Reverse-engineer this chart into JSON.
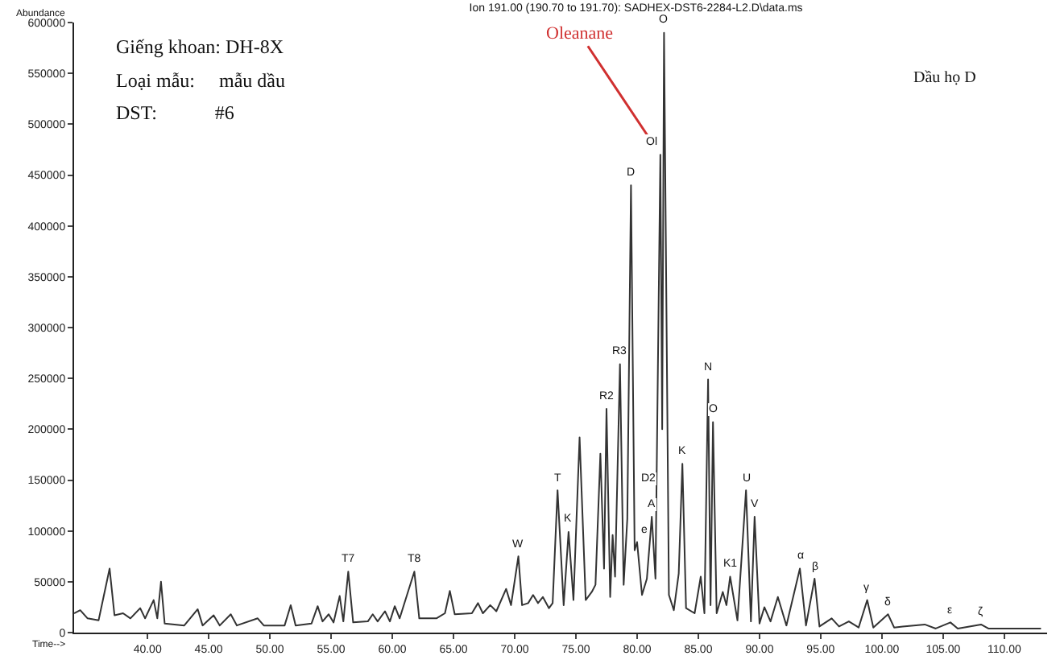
{
  "chart_data": {
    "type": "line",
    "title": "Ion 191.00 (190.70 to 191.70): SADHEX-DST6-2284-L2.D\\data.ms",
    "xlabel": "Time-->",
    "ylabel": "Abundance",
    "xlim": [
      34,
      113.5
    ],
    "ylim": [
      0,
      600000
    ],
    "xticks": [
      {
        "value": 40,
        "label": "40.00"
      },
      {
        "value": 45,
        "label": "45.00"
      },
      {
        "value": 50,
        "label": "50.00"
      },
      {
        "value": 55,
        "label": "55.00"
      },
      {
        "value": 60,
        "label": "60.00"
      },
      {
        "value": 65,
        "label": "65.00"
      },
      {
        "value": 70,
        "label": "70.00"
      },
      {
        "value": 75,
        "label": "75.00"
      },
      {
        "value": 80,
        "label": "80.00"
      },
      {
        "value": 85,
        "label": "85.00"
      },
      {
        "value": 90,
        "label": "90.00"
      },
      {
        "value": 95,
        "label": "95.00"
      },
      {
        "value": 100,
        "label": "100.00"
      },
      {
        "value": 105,
        "label": "105.00"
      },
      {
        "value": 110,
        "label": "110.00"
      }
    ],
    "yticks": [
      0,
      50000,
      100000,
      150000,
      200000,
      250000,
      300000,
      350000,
      400000,
      450000,
      500000,
      550000,
      600000
    ],
    "marker": "none",
    "line_style": "solid",
    "x": [
      34.0,
      34.5,
      35.1,
      36.0,
      36.9,
      37.3,
      38.0,
      38.6,
      39.4,
      39.8,
      40.5,
      40.8,
      41.1,
      41.4,
      43.0,
      44.1,
      44.5,
      45.4,
      45.9,
      46.8,
      47.3,
      49.0,
      49.5,
      51.2,
      51.7,
      52.1,
      53.4,
      53.9,
      54.3,
      54.8,
      55.2,
      55.7,
      56.0,
      56.4,
      56.8,
      58.0,
      58.4,
      58.8,
      59.4,
      59.8,
      60.2,
      60.6,
      61.8,
      62.2,
      63.6,
      64.3,
      64.7,
      65.1,
      66.5,
      67.0,
      67.4,
      68.0,
      68.5,
      69.3,
      69.7,
      70.3,
      70.6,
      71.1,
      71.5,
      71.9,
      72.3,
      72.8,
      73.1,
      73.5,
      74.0,
      74.4,
      74.8,
      75.3,
      75.8,
      76.3,
      76.6,
      77.0,
      77.3,
      77.5,
      77.8,
      78.0,
      78.2,
      78.6,
      78.9,
      79.2,
      79.5,
      79.8,
      80.0,
      80.4,
      80.8,
      81.2,
      81.5,
      81.9,
      82.05,
      82.2,
      82.6,
      83.0,
      83.4,
      83.7,
      84.0,
      84.7,
      85.2,
      85.5,
      85.8,
      86.0,
      86.2,
      86.5,
      87.0,
      87.3,
      87.6,
      88.2,
      88.9,
      89.3,
      89.6,
      90.0,
      90.4,
      90.9,
      91.5,
      92.2,
      93.3,
      93.8,
      94.5,
      94.9,
      95.9,
      96.5,
      97.3,
      98.1,
      98.8,
      99.3,
      100.5,
      101.0,
      101.7,
      103.5,
      104.4,
      105.6,
      106.2,
      108.1,
      108.7,
      113.0
    ],
    "series": [
      {
        "color": "#333333",
        "values": [
          19000,
          22000,
          14000,
          12000,
          63000,
          17000,
          19000,
          14000,
          24000,
          14000,
          32000,
          14000,
          50000,
          9000,
          7000,
          23000,
          7000,
          17000,
          7000,
          18000,
          7000,
          14000,
          7000,
          7000,
          27000,
          7000,
          9000,
          26000,
          11000,
          18000,
          10000,
          36000,
          11000,
          60000,
          10000,
          11000,
          18000,
          11000,
          21000,
          11000,
          26000,
          14000,
          60000,
          14000,
          14000,
          19000,
          41000,
          18000,
          19000,
          29000,
          19000,
          27000,
          21000,
          43000,
          27000,
          75000,
          27000,
          29000,
          37000,
          29000,
          35000,
          24000,
          29000,
          140000,
          27000,
          99000,
          32000,
          192000,
          32000,
          40000,
          47000,
          176000,
          63000,
          220000,
          35000,
          96000,
          55000,
          264000,
          47000,
          112000,
          440000,
          81000,
          89000,
          37000,
          53000,
          114000,
          53000,
          470000,
          200000,
          590000,
          37000,
          22000,
          58000,
          166000,
          24000,
          19000,
          55000,
          19000,
          249000,
          27000,
          207000,
          19000,
          40000,
          27000,
          55000,
          12000,
          140000,
          11000,
          114000,
          9000,
          25000,
          11000,
          35000,
          7000,
          63000,
          7000,
          53000,
          6000,
          14000,
          6000,
          11000,
          5000,
          32000,
          5000,
          18000,
          5000,
          6000,
          8000,
          4000,
          10000,
          4000,
          8000,
          4000,
          4000
        ]
      }
    ],
    "annotations": [
      "Giếng khoan: DH-8X",
      "Loại mẫu:     mẫu dầu",
      "DST:            #6",
      "Dầu họ D",
      {
        "text": "Oleanane",
        "x": 81.9,
        "y": 470000
      },
      {
        "text": "T7",
        "x": 56.4,
        "y": 60000
      },
      {
        "text": "T8",
        "x": 61.8,
        "y": 60000
      },
      {
        "text": "W",
        "x": 70.3,
        "y": 75000
      },
      {
        "text": "T",
        "x": 73.5,
        "y": 140000
      },
      {
        "text": "K",
        "x": 74.4,
        "y": 99000
      },
      {
        "text": "R2",
        "x": 77.5,
        "y": 220000
      },
      {
        "text": "R3",
        "x": 78.6,
        "y": 264000
      },
      {
        "text": "D",
        "x": 79.5,
        "y": 440000
      },
      {
        "text": "D2",
        "x": 80.0,
        "y": 140000
      },
      {
        "text": "e",
        "x": 80.0,
        "y": 89000
      },
      {
        "text": "A",
        "x": 81.2,
        "y": 114000
      },
      {
        "text": "Ol",
        "x": 81.9,
        "y": 470000
      },
      {
        "text": "O",
        "x": 82.2,
        "y": 590000
      },
      {
        "text": "K",
        "x": 83.7,
        "y": 166000
      },
      {
        "text": "N",
        "x": 85.8,
        "y": 249000
      },
      {
        "text": "O",
        "x": 86.2,
        "y": 207000
      },
      {
        "text": "K1",
        "x": 87.6,
        "y": 55000
      },
      {
        "text": "U",
        "x": 88.9,
        "y": 140000
      },
      {
        "text": "V",
        "x": 89.6,
        "y": 114000
      },
      {
        "text": "α",
        "x": 93.3,
        "y": 63000
      },
      {
        "text": "β",
        "x": 94.5,
        "y": 53000
      },
      {
        "text": "γ",
        "x": 98.8,
        "y": 32000
      },
      {
        "text": "δ",
        "x": 100.5,
        "y": 18000
      },
      {
        "text": "ε",
        "x": 105.6,
        "y": 10000
      },
      {
        "text": "ζ",
        "x": 108.1,
        "y": 8000
      }
    ]
  }
}
